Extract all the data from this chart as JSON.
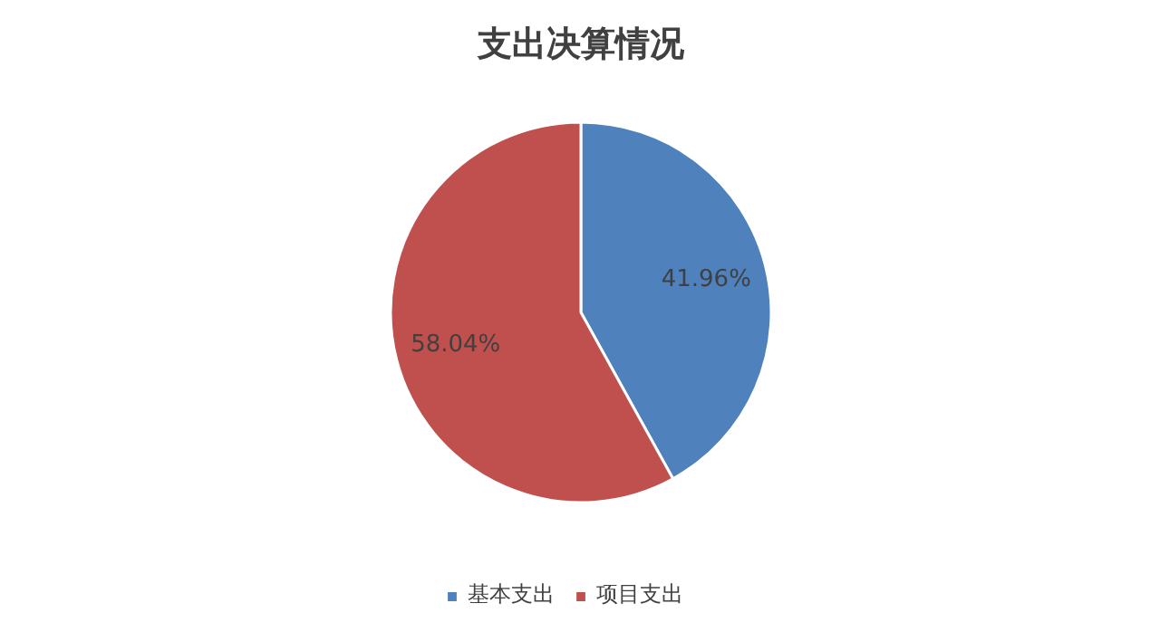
{
  "chart_data": {
    "type": "pie",
    "title": "支出决算情况",
    "categories": [
      "基本支出",
      "项目支出"
    ],
    "values": [
      41.96,
      58.04
    ],
    "colors": [
      "#4f81bd",
      "#c0504d"
    ],
    "value_labels": [
      "41.96%",
      "58.04%"
    ],
    "legend": "bottom"
  }
}
